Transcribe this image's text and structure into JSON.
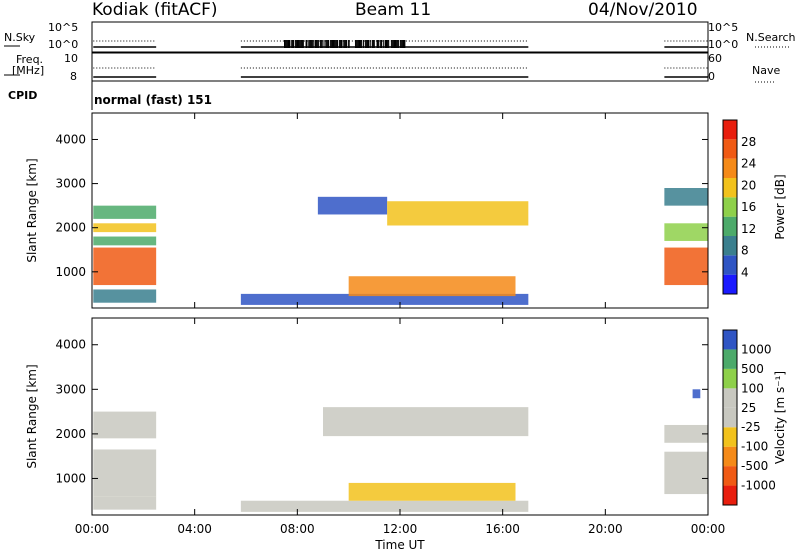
{
  "header": {
    "station": "Kodiak (fitACF)",
    "beam": "Beam 11",
    "date": "04/Nov/2010"
  },
  "top_panel_labels": {
    "nsky_label": "N.Sky",
    "nsearch_label": "N.Search",
    "freq_label_1": "Freq.",
    "freq_label_2": "[MHz]",
    "nave_label": "Nave",
    "cpid_label": "CPID",
    "cpid_value": "normal (fast) 151",
    "nsky_ticks": [
      "10^5",
      "10^0"
    ],
    "nsearch_ticks": [
      "10^5",
      "10^0"
    ],
    "freq_ticks": [
      "10",
      "8"
    ],
    "nave_ticks": [
      "60",
      "0"
    ]
  },
  "colors": {
    "power_scale": [
      "#1a1aff",
      "#2f55c4",
      "#3a7f8e",
      "#4caa6a",
      "#8ed04a",
      "#f2c21c",
      "#f58a18",
      "#f05a14",
      "#e81e0e"
    ],
    "velocity_scale": [
      "#e81e0e",
      "#f05a14",
      "#f58a18",
      "#f2c21c",
      "#c8c8c0",
      "#c8c8c0",
      "#8ed04a",
      "#4caa6a",
      "#2f55c4"
    ]
  },
  "chart_data": [
    {
      "type": "heatmap",
      "panel": "power",
      "xlabel": "",
      "ylabel": "Slant Range [km]",
      "xlim": [
        0,
        24
      ],
      "ylim": [
        180,
        4600
      ],
      "yticks": [
        1000,
        2000,
        3000,
        4000
      ],
      "colorbar": {
        "label": "Power [dB]",
        "ticks": [
          "4",
          "8",
          "12",
          "16",
          "20",
          "24",
          "28"
        ],
        "range": [
          0,
          32
        ]
      },
      "regions": [
        {
          "t": [
            0.05,
            2.5
          ],
          "r": [
            700,
            1550
          ],
          "value": 27
        },
        {
          "t": [
            0.05,
            2.5
          ],
          "r": [
            1600,
            1800
          ],
          "value": 14
        },
        {
          "t": [
            0.05,
            2.5
          ],
          "r": [
            1900,
            2100
          ],
          "value": 18
        },
        {
          "t": [
            0.05,
            2.5
          ],
          "r": [
            2200,
            2500
          ],
          "value": 12
        },
        {
          "t": [
            0.05,
            2.5
          ],
          "r": [
            300,
            600
          ],
          "value": 10
        },
        {
          "t": [
            5.8,
            17.0
          ],
          "r": [
            250,
            500
          ],
          "value": 5
        },
        {
          "t": [
            8.8,
            11.5
          ],
          "r": [
            2300,
            2700
          ],
          "value": 6
        },
        {
          "t": [
            11.5,
            17.0
          ],
          "r": [
            2050,
            2600
          ],
          "value": 20
        },
        {
          "t": [
            10.0,
            16.5
          ],
          "r": [
            450,
            900
          ],
          "value": 22
        },
        {
          "t": [
            22.3,
            24.0
          ],
          "r": [
            700,
            1550
          ],
          "value": 27
        },
        {
          "t": [
            22.3,
            24.0
          ],
          "r": [
            1700,
            2100
          ],
          "value": 15
        },
        {
          "t": [
            22.3,
            24.0
          ],
          "r": [
            2500,
            2900
          ],
          "value": 10
        }
      ]
    },
    {
      "type": "heatmap",
      "panel": "velocity",
      "xlabel": "Time UT",
      "ylabel": "Slant Range [km]",
      "xlim": [
        0,
        24
      ],
      "ylim": [
        180,
        4600
      ],
      "yticks": [
        1000,
        2000,
        3000,
        4000
      ],
      "xticks": [
        "00:00",
        "04:00",
        "08:00",
        "12:00",
        "16:00",
        "20:00",
        "00:00"
      ],
      "xtick_values": [
        0,
        4,
        8,
        12,
        16,
        20,
        24
      ],
      "colorbar": {
        "label": "Velocity [m s⁻¹]",
        "ticks": [
          "-1000",
          "-500",
          "-100",
          "-25",
          "25",
          "100",
          "500",
          "1000"
        ]
      },
      "regions": [
        {
          "t": [
            0.05,
            2.5
          ],
          "r": [
            600,
            1650
          ],
          "value": 0
        },
        {
          "t": [
            0.05,
            2.5
          ],
          "r": [
            1900,
            2500
          ],
          "value": 0
        },
        {
          "t": [
            0.05,
            2.5
          ],
          "r": [
            300,
            600
          ],
          "value": 0
        },
        {
          "t": [
            5.8,
            17.0
          ],
          "r": [
            250,
            500
          ],
          "value": 0
        },
        {
          "t": [
            9.0,
            17.0
          ],
          "r": [
            1950,
            2600
          ],
          "value": 0
        },
        {
          "t": [
            10.0,
            16.5
          ],
          "r": [
            500,
            900
          ],
          "value": -80
        },
        {
          "t": [
            22.3,
            24.0
          ],
          "r": [
            650,
            1600
          ],
          "value": 0
        },
        {
          "t": [
            22.3,
            24.0
          ],
          "r": [
            1800,
            2200
          ],
          "value": 0
        },
        {
          "t": [
            23.4,
            23.7
          ],
          "r": [
            2800,
            3000
          ],
          "value": 900
        }
      ]
    }
  ]
}
